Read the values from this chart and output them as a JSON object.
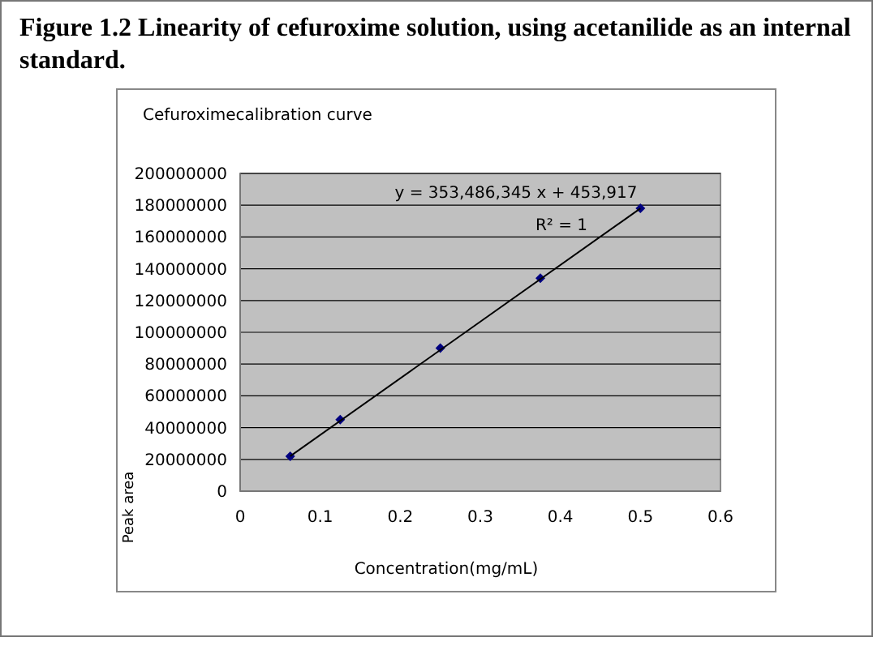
{
  "chart_data": {
    "type": "scatter",
    "title": "Figure 1.2 Linearity of cefuroxime solution, using acetanilide as an internal standard.",
    "subtitle": "Cefuroximecalibration curve",
    "xlabel": "Concentration(mg/mL)",
    "ylabel": "Peak  area",
    "series": [
      {
        "type": "scatter",
        "color": "#000080",
        "marker": "diamond",
        "x": [
          0.0625,
          0.125,
          0.25,
          0.375,
          0.5
        ],
        "values": [
          22000000,
          45000000,
          90000000,
          134000000,
          178000000
        ]
      },
      {
        "type": "line",
        "color": "#000000",
        "marker": "none",
        "line_style": "solid",
        "x": [
          0.0625,
          0.5
        ],
        "values": [
          22000000,
          178000000
        ]
      }
    ],
    "annotations": [
      "y = 353,486,345 x + 453,917",
      "R² = 1"
    ],
    "xlim": [
      0,
      0.6
    ],
    "xticks": [
      0,
      0.1,
      0.2,
      0.3,
      0.4,
      0.5,
      0.6
    ],
    "ylim": [
      0,
      200000000
    ],
    "yticks": [
      0,
      20000000,
      40000000,
      60000000,
      80000000,
      100000000,
      120000000,
      140000000,
      160000000,
      180000000,
      200000000
    ],
    "grid": "y"
  }
}
